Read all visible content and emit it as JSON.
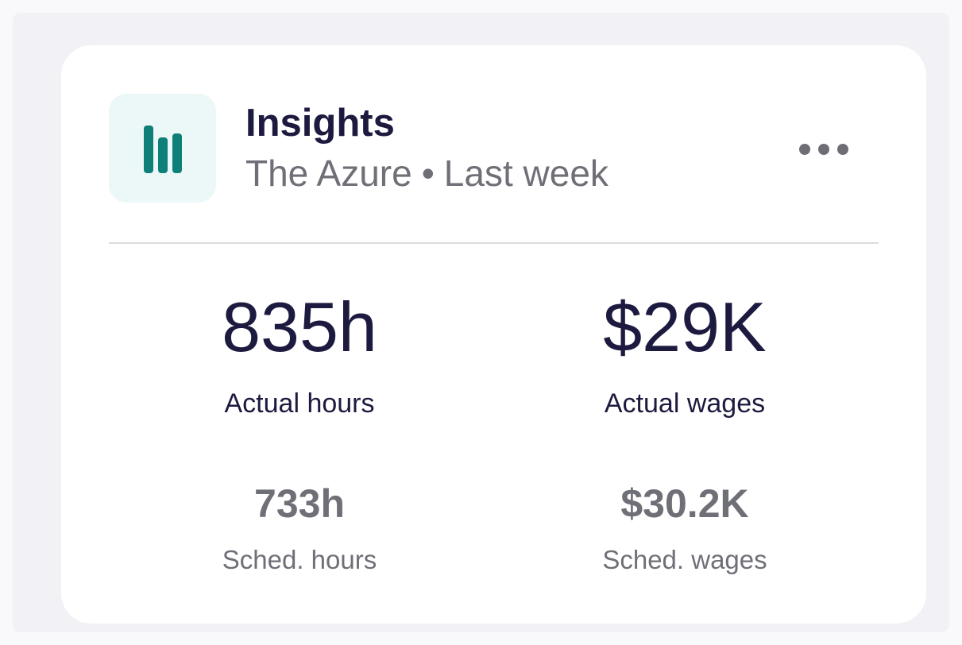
{
  "card": {
    "title": "Insights",
    "location": "The Azure",
    "separator": "•",
    "period": "Last week",
    "icon": "bar-chart-icon",
    "menu_icon": "more-horizontal-icon"
  },
  "metrics": {
    "actual_hours": {
      "value": "835h",
      "label": "Actual hours"
    },
    "actual_wages": {
      "value": "$29K",
      "label": "Actual wages"
    },
    "sched_hours": {
      "value": "733h",
      "label": "Sched. hours"
    },
    "sched_wages": {
      "value": "$30.2K",
      "label": "Sched. wages"
    }
  },
  "colors": {
    "accent": "#0f8079",
    "icon_bg": "#ecf8f7",
    "title": "#1d1a40",
    "muted": "#6f6f78"
  }
}
